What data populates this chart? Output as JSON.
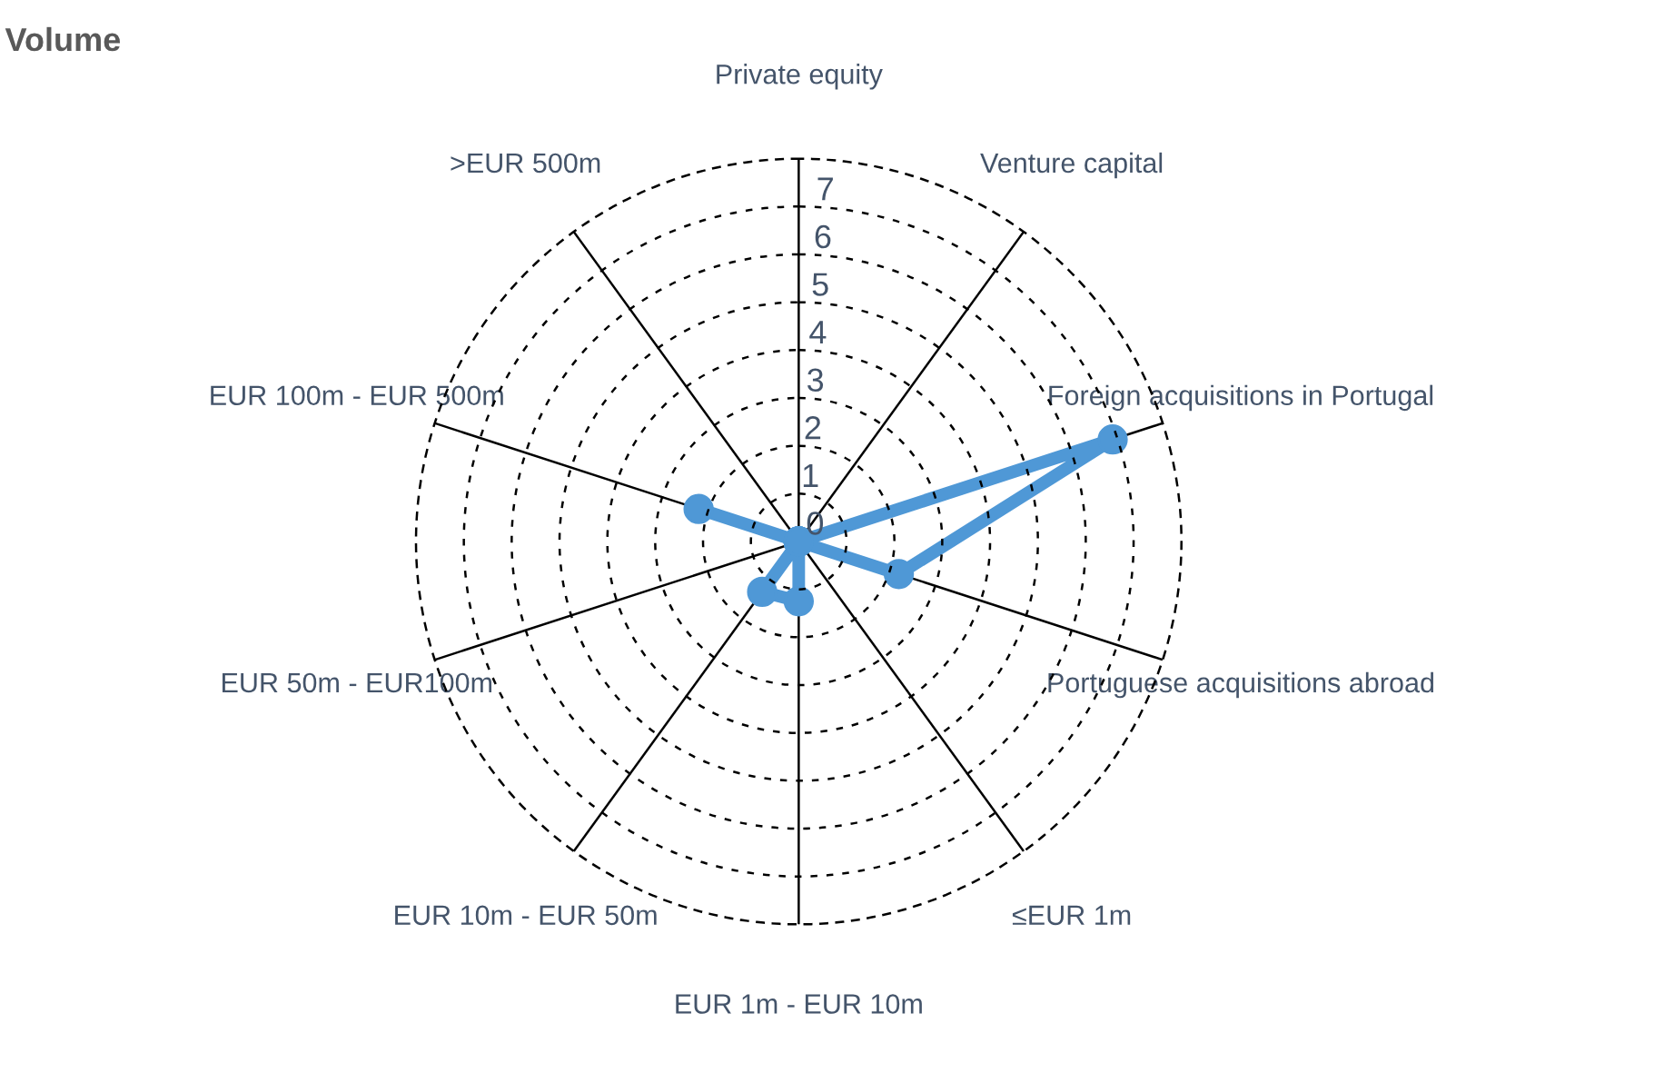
{
  "chart_data": {
    "type": "radar",
    "title": "Volume",
    "categories": [
      "Private equity",
      "Venture capital",
      "Foreign acquisitions in Portugal",
      "Portuguese acquisitions abroad",
      "≤EUR 1m",
      "EUR 1m - EUR 10m",
      "EUR 10m - EUR 50m",
      "EUR 50m - EUR100m",
      "EUR 100m - EUR 500m",
      ">EUR 500m"
    ],
    "series": [
      {
        "color": "#4f98d6",
        "values": [
          0,
          0,
          6.9,
          2.2,
          0,
          1.25,
          1.3,
          0,
          2.2,
          0
        ]
      }
    ],
    "ylim": [
      0,
      8
    ],
    "yticks": [
      0,
      1,
      2,
      3,
      4,
      5,
      6,
      7
    ],
    "grid": true,
    "marker": "circle",
    "line_style": "solid"
  }
}
